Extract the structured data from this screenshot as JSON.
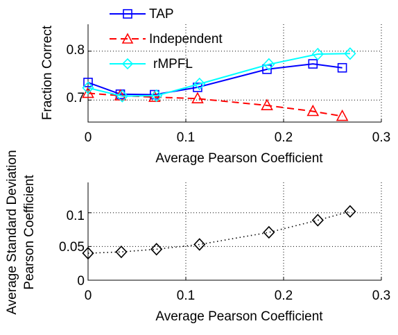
{
  "chart_data": [
    {
      "type": "line",
      "xlabel": "Average Pearson Coefficient",
      "ylabel": "Fraction Correct",
      "xlim": [
        0,
        0.3
      ],
      "ylim": [
        0.655,
        0.855
      ],
      "xticks": [
        "0",
        "0.1",
        "0.2",
        "0.3"
      ],
      "yticks": [
        "0.7",
        "0.8"
      ],
      "grid": true,
      "legend_position": "top-left",
      "series": [
        {
          "name": "TAP",
          "color": "#0000ff",
          "marker": "square",
          "line": "solid",
          "x": [
            0,
            0.033,
            0.068,
            0.112,
            0.183,
            0.23,
            0.26
          ],
          "y": [
            0.736,
            0.712,
            0.711,
            0.726,
            0.763,
            0.774,
            0.766
          ]
        },
        {
          "name": "Independent",
          "color": "#ff0000",
          "marker": "triangle",
          "line": "dashed",
          "x": [
            0,
            0.033,
            0.068,
            0.112,
            0.183,
            0.23,
            0.26
          ],
          "y": [
            0.714,
            0.709,
            0.706,
            0.703,
            0.689,
            0.677,
            0.667
          ]
        },
        {
          "name": "rMPFL",
          "color": "#00ffff",
          "marker": "diamond",
          "line": "solid",
          "x": [
            0,
            0.035,
            0.07,
            0.114,
            0.185,
            0.235,
            0.268
          ],
          "y": [
            0.725,
            0.708,
            0.709,
            0.733,
            0.773,
            0.794,
            0.795
          ]
        }
      ]
    },
    {
      "type": "scatter",
      "xlabel": "Average Pearson Coefficient",
      "ylabel_lines": [
        "Average Standard Deviation",
        "Pearson Coefficient"
      ],
      "xlim": [
        0,
        0.3
      ],
      "ylim": [
        0,
        0.145
      ],
      "xticks": [
        "0",
        "0.1",
        "0.2",
        "0.3"
      ],
      "yticks": [
        "0",
        "0.05",
        "0.1"
      ],
      "grid": true,
      "series": [
        {
          "color": "#000000",
          "marker": "diamond",
          "line": "dotted",
          "x": [
            0,
            0.034,
            0.07,
            0.114,
            0.185,
            0.235,
            0.268
          ],
          "y": [
            0.04,
            0.042,
            0.046,
            0.053,
            0.071,
            0.089,
            0.102
          ]
        }
      ]
    }
  ]
}
